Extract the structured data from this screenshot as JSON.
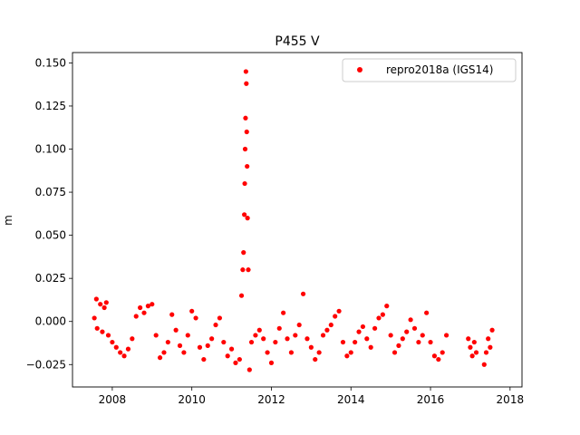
{
  "chart_data": {
    "type": "scatter",
    "title": "P455 V",
    "xlabel": "",
    "ylabel": "m",
    "xlim": [
      2007.0,
      2018.3
    ],
    "ylim": [
      -0.038,
      0.156
    ],
    "x_ticks": [
      2008,
      2010,
      2012,
      2014,
      2016,
      2018
    ],
    "x_tick_labels": [
      "2008",
      "2010",
      "2012",
      "2014",
      "2016",
      "2018"
    ],
    "y_ticks": [
      -0.025,
      0.0,
      0.025,
      0.05,
      0.075,
      0.1,
      0.125,
      0.15
    ],
    "y_tick_labels": [
      "−0.025",
      "0.000",
      "0.025",
      "0.050",
      "0.075",
      "0.100",
      "0.125",
      "0.150"
    ],
    "grid": false,
    "legend_position": "top-right",
    "series": [
      {
        "name": "repro2018a (IGS14)",
        "color": "#ff0000",
        "marker": "circle",
        "description_points": [
          {
            "x": 2007.55,
            "y": 0.002
          },
          {
            "x": 2007.6,
            "y": 0.013
          },
          {
            "x": 2007.62,
            "y": -0.004
          },
          {
            "x": 2007.7,
            "y": 0.01
          },
          {
            "x": 2007.75,
            "y": -0.006
          },
          {
            "x": 2007.8,
            "y": 0.008
          },
          {
            "x": 2007.85,
            "y": 0.011
          },
          {
            "x": 2007.9,
            "y": -0.008
          },
          {
            "x": 2008.0,
            "y": -0.012
          },
          {
            "x": 2008.1,
            "y": -0.015
          },
          {
            "x": 2008.2,
            "y": -0.018
          },
          {
            "x": 2008.3,
            "y": -0.02
          },
          {
            "x": 2008.4,
            "y": -0.016
          },
          {
            "x": 2008.5,
            "y": -0.01
          },
          {
            "x": 2008.6,
            "y": 0.003
          },
          {
            "x": 2008.7,
            "y": 0.008
          },
          {
            "x": 2008.8,
            "y": 0.005
          },
          {
            "x": 2008.9,
            "y": 0.009
          },
          {
            "x": 2009.0,
            "y": 0.01
          },
          {
            "x": 2009.1,
            "y": -0.008
          },
          {
            "x": 2009.2,
            "y": -0.021
          },
          {
            "x": 2009.3,
            "y": -0.018
          },
          {
            "x": 2009.4,
            "y": -0.012
          },
          {
            "x": 2009.5,
            "y": 0.004
          },
          {
            "x": 2009.6,
            "y": -0.005
          },
          {
            "x": 2009.7,
            "y": -0.014
          },
          {
            "x": 2009.8,
            "y": -0.018
          },
          {
            "x": 2009.9,
            "y": -0.008
          },
          {
            "x": 2010.0,
            "y": 0.006
          },
          {
            "x": 2010.1,
            "y": 0.002
          },
          {
            "x": 2010.2,
            "y": -0.015
          },
          {
            "x": 2010.3,
            "y": -0.022
          },
          {
            "x": 2010.4,
            "y": -0.014
          },
          {
            "x": 2010.5,
            "y": -0.01
          },
          {
            "x": 2010.6,
            "y": -0.002
          },
          {
            "x": 2010.7,
            "y": 0.002
          },
          {
            "x": 2010.8,
            "y": -0.012
          },
          {
            "x": 2010.9,
            "y": -0.02
          },
          {
            "x": 2011.0,
            "y": -0.016
          },
          {
            "x": 2011.1,
            "y": -0.024
          },
          {
            "x": 2011.2,
            "y": -0.022
          },
          {
            "x": 2011.25,
            "y": 0.015
          },
          {
            "x": 2011.28,
            "y": 0.03
          },
          {
            "x": 2011.3,
            "y": 0.04
          },
          {
            "x": 2011.32,
            "y": 0.062
          },
          {
            "x": 2011.33,
            "y": 0.08
          },
          {
            "x": 2011.34,
            "y": 0.1
          },
          {
            "x": 2011.35,
            "y": 0.118
          },
          {
            "x": 2011.36,
            "y": 0.145
          },
          {
            "x": 2011.37,
            "y": 0.138
          },
          {
            "x": 2011.38,
            "y": 0.11
          },
          {
            "x": 2011.39,
            "y": 0.09
          },
          {
            "x": 2011.4,
            "y": 0.06
          },
          {
            "x": 2011.42,
            "y": 0.03
          },
          {
            "x": 2011.45,
            "y": -0.028
          },
          {
            "x": 2011.5,
            "y": -0.012
          },
          {
            "x": 2011.6,
            "y": -0.008
          },
          {
            "x": 2011.7,
            "y": -0.005
          },
          {
            "x": 2011.8,
            "y": -0.01
          },
          {
            "x": 2011.9,
            "y": -0.018
          },
          {
            "x": 2012.0,
            "y": -0.024
          },
          {
            "x": 2012.1,
            "y": -0.012
          },
          {
            "x": 2012.2,
            "y": -0.004
          },
          {
            "x": 2012.3,
            "y": 0.005
          },
          {
            "x": 2012.4,
            "y": -0.01
          },
          {
            "x": 2012.5,
            "y": -0.018
          },
          {
            "x": 2012.6,
            "y": -0.008
          },
          {
            "x": 2012.7,
            "y": -0.002
          },
          {
            "x": 2012.8,
            "y": 0.016
          },
          {
            "x": 2012.9,
            "y": -0.01
          },
          {
            "x": 2013.0,
            "y": -0.015
          },
          {
            "x": 2013.1,
            "y": -0.022
          },
          {
            "x": 2013.2,
            "y": -0.018
          },
          {
            "x": 2013.3,
            "y": -0.008
          },
          {
            "x": 2013.4,
            "y": -0.005
          },
          {
            "x": 2013.5,
            "y": -0.002
          },
          {
            "x": 2013.6,
            "y": 0.003
          },
          {
            "x": 2013.7,
            "y": 0.006
          },
          {
            "x": 2013.8,
            "y": -0.012
          },
          {
            "x": 2013.9,
            "y": -0.02
          },
          {
            "x": 2014.0,
            "y": -0.018
          },
          {
            "x": 2014.1,
            "y": -0.012
          },
          {
            "x": 2014.2,
            "y": -0.006
          },
          {
            "x": 2014.3,
            "y": -0.003
          },
          {
            "x": 2014.4,
            "y": -0.01
          },
          {
            "x": 2014.5,
            "y": -0.015
          },
          {
            "x": 2014.6,
            "y": -0.004
          },
          {
            "x": 2014.7,
            "y": 0.002
          },
          {
            "x": 2014.8,
            "y": 0.004
          },
          {
            "x": 2014.9,
            "y": 0.009
          },
          {
            "x": 2015.0,
            "y": -0.008
          },
          {
            "x": 2015.1,
            "y": -0.018
          },
          {
            "x": 2015.2,
            "y": -0.014
          },
          {
            "x": 2015.3,
            "y": -0.01
          },
          {
            "x": 2015.4,
            "y": -0.006
          },
          {
            "x": 2015.5,
            "y": 0.001
          },
          {
            "x": 2015.6,
            "y": -0.004
          },
          {
            "x": 2015.7,
            "y": -0.012
          },
          {
            "x": 2015.8,
            "y": -0.008
          },
          {
            "x": 2015.9,
            "y": 0.005
          },
          {
            "x": 2016.0,
            "y": -0.012
          },
          {
            "x": 2016.1,
            "y": -0.02
          },
          {
            "x": 2016.2,
            "y": -0.022
          },
          {
            "x": 2016.3,
            "y": -0.018
          },
          {
            "x": 2016.4,
            "y": -0.008
          },
          {
            "x": 2016.95,
            "y": -0.01
          },
          {
            "x": 2017.0,
            "y": -0.015
          },
          {
            "x": 2017.05,
            "y": -0.02
          },
          {
            "x": 2017.1,
            "y": -0.012
          },
          {
            "x": 2017.15,
            "y": -0.018
          },
          {
            "x": 2017.35,
            "y": -0.025
          },
          {
            "x": 2017.4,
            "y": -0.018
          },
          {
            "x": 2017.45,
            "y": -0.01
          },
          {
            "x": 2017.5,
            "y": -0.015
          },
          {
            "x": 2017.55,
            "y": -0.005
          }
        ]
      }
    ]
  }
}
